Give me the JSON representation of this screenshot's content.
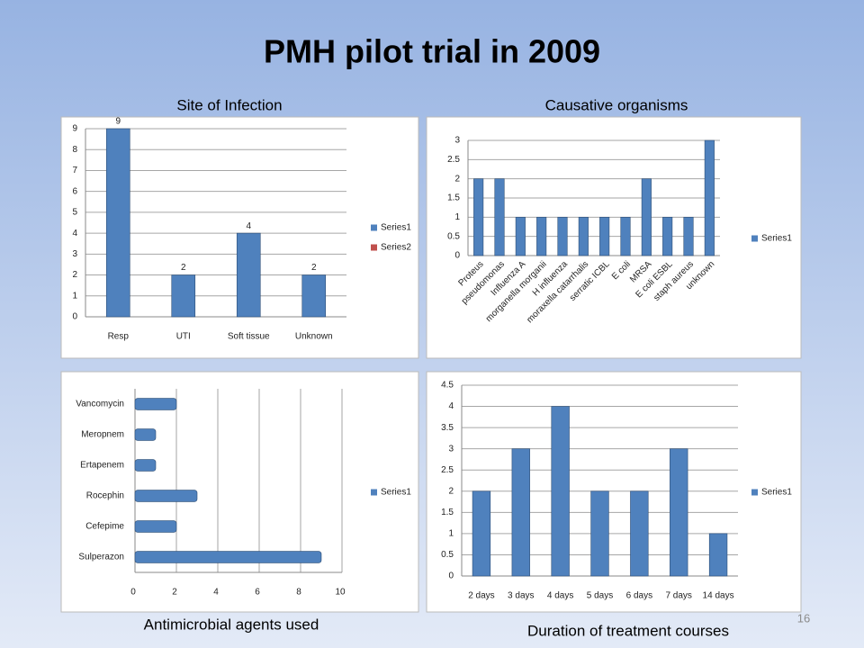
{
  "slide": {
    "title": "PMH pilot trial in 2009",
    "page_number": "16"
  },
  "chart_data": [
    {
      "type": "bar",
      "title": "Site of Infection",
      "categories": [
        "Resp",
        "UTI",
        "Soft tissue",
        "Unknown"
      ],
      "series": [
        {
          "name": "Series1",
          "color": "#4f81bd",
          "values": [
            9,
            2,
            4,
            2
          ]
        },
        {
          "name": "Series2",
          "color": "#c0504d",
          "values": [
            null,
            null,
            null,
            null
          ]
        }
      ],
      "ylim": [
        0,
        9
      ],
      "yticks": [
        0,
        1,
        2,
        3,
        4,
        5,
        6,
        7,
        8,
        9
      ],
      "grid": true,
      "data_labels": true,
      "legend": "right"
    },
    {
      "type": "bar",
      "title": "Causative organisms",
      "categories": [
        "Proteus",
        "pseudomonas",
        "Influenza A",
        "morganella morganii",
        "H influenza",
        "moraxella catarrhalis",
        "serratic ICBL",
        "E coli",
        "MRSA",
        "E coli ESBL",
        "staph aureus",
        "unknown"
      ],
      "series": [
        {
          "name": "Series1",
          "color": "#4f81bd",
          "values": [
            2,
            2,
            1,
            1,
            1,
            1,
            1,
            1,
            2,
            1,
            1,
            3
          ]
        }
      ],
      "ylim": [
        0,
        3
      ],
      "yticks": [
        0,
        0.5,
        1,
        1.5,
        2,
        2.5,
        3
      ],
      "grid": true,
      "data_labels": false,
      "legend": "right"
    },
    {
      "type": "barh",
      "title": "Antimicrobial agents used",
      "categories": [
        "Vancomycin",
        "Meropnem",
        "Ertapenem",
        "Rocephin",
        "Cefepime",
        "Sulperazon"
      ],
      "series": [
        {
          "name": "Series1",
          "color": "#4f81bd",
          "values": [
            2,
            1,
            1,
            3,
            2,
            9
          ]
        }
      ],
      "xlim": [
        0,
        10
      ],
      "xticks": [
        0,
        2,
        4,
        6,
        8,
        10
      ],
      "grid": true,
      "data_labels": false,
      "legend": "right"
    },
    {
      "type": "bar",
      "title": "Duration of treatment courses",
      "categories": [
        "2 days",
        "3 days",
        "4 days",
        "5 days",
        "6 days",
        "7 days",
        "14 days"
      ],
      "series": [
        {
          "name": "Series1",
          "color": "#4f81bd",
          "values": [
            2,
            3,
            4,
            2,
            2,
            3,
            1
          ]
        }
      ],
      "ylim": [
        0,
        4.5
      ],
      "yticks": [
        0,
        0.5,
        1,
        1.5,
        2,
        2.5,
        3,
        3.5,
        4,
        4.5
      ],
      "grid": true,
      "data_labels": false,
      "legend": "right"
    }
  ]
}
